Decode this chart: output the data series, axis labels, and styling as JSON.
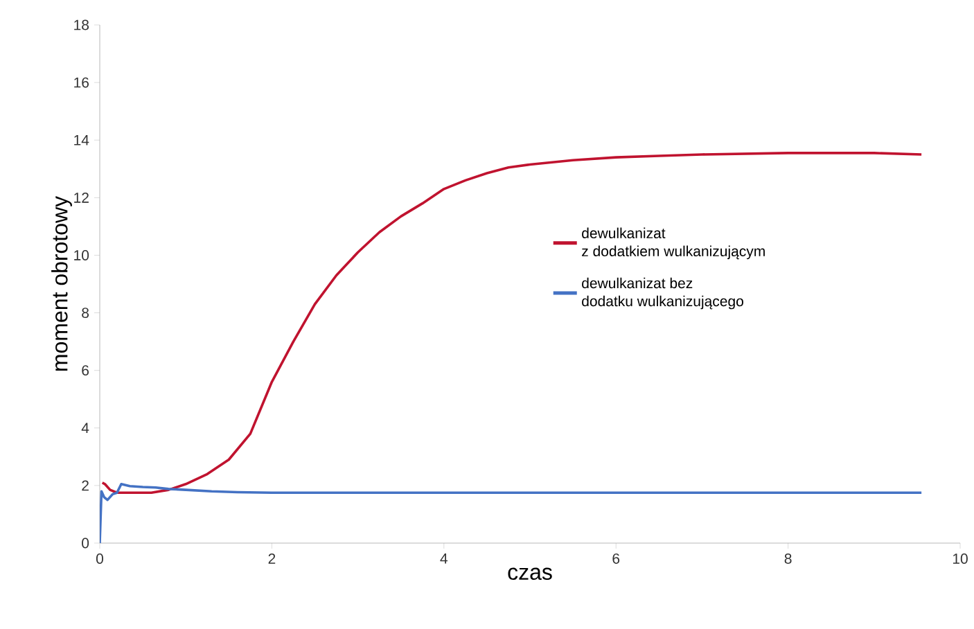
{
  "chart_data": {
    "type": "line",
    "xlabel": "czas",
    "ylabel": "moment obrotowy",
    "xlim": [
      0,
      10
    ],
    "ylim": [
      0,
      18
    ],
    "xticks": [
      0,
      2,
      4,
      6,
      8,
      10
    ],
    "yticks": [
      0,
      2,
      4,
      6,
      8,
      10,
      12,
      14,
      16,
      18
    ],
    "grid": false,
    "legend": "right",
    "marker": "none",
    "line_style": "solid",
    "series": [
      {
        "name": "dewulkanizat\nz dodatkiem wulkanizującym",
        "color": "#c0132f",
        "x": [
          0.03,
          0.06,
          0.12,
          0.2,
          0.4,
          0.6,
          0.8,
          1.0,
          1.25,
          1.5,
          1.75,
          2.0,
          2.25,
          2.5,
          2.75,
          3.0,
          3.25,
          3.5,
          3.75,
          4.0,
          4.25,
          4.5,
          4.75,
          5.0,
          5.5,
          6.0,
          6.5,
          7.0,
          8.0,
          9.0,
          9.55
        ],
        "values": [
          2.1,
          2.05,
          1.85,
          1.75,
          1.75,
          1.75,
          1.85,
          2.05,
          2.4,
          2.9,
          3.8,
          5.6,
          7.0,
          8.3,
          9.3,
          10.1,
          10.8,
          11.35,
          11.8,
          12.3,
          12.6,
          12.85,
          13.05,
          13.15,
          13.3,
          13.4,
          13.45,
          13.5,
          13.55,
          13.55,
          13.5
        ]
      },
      {
        "name": "dewulkanizat bez\ndodatku wulkanizującego",
        "color": "#4472c4",
        "x": [
          0,
          0.02,
          0.05,
          0.09,
          0.15,
          0.2,
          0.25,
          0.35,
          0.5,
          0.65,
          0.8,
          1.0,
          1.3,
          1.6,
          2.0,
          4.0,
          6.0,
          8.0,
          9.55
        ],
        "values": [
          0,
          1.8,
          1.6,
          1.5,
          1.7,
          1.75,
          2.05,
          1.98,
          1.95,
          1.93,
          1.88,
          1.85,
          1.8,
          1.77,
          1.75,
          1.75,
          1.75,
          1.75,
          1.75
        ]
      }
    ]
  }
}
